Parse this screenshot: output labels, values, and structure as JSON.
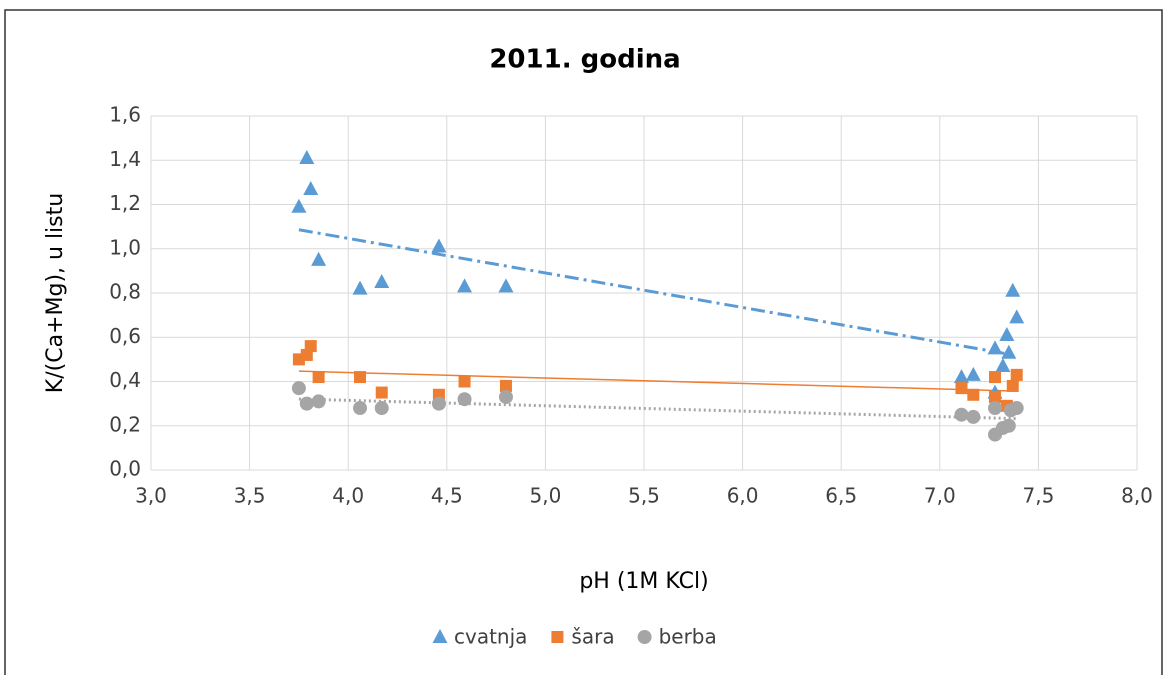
{
  "chart_data": {
    "type": "scatter",
    "title": "2011. godina",
    "x_label": "pH (1M KCl)",
    "y_label": "K/(Ca+Mg),  u listu",
    "xlim": [
      3.0,
      8.0
    ],
    "xticks": [
      {
        "value": 3.0,
        "label": "3,0"
      },
      {
        "value": 3.5,
        "label": "3,5"
      },
      {
        "value": 4.0,
        "label": "4,0"
      },
      {
        "value": 4.5,
        "label": "4,5"
      },
      {
        "value": 5.0,
        "label": "5,0"
      },
      {
        "value": 5.5,
        "label": "5,5"
      },
      {
        "value": 6.0,
        "label": "6,0"
      },
      {
        "value": 6.5,
        "label": "6,5"
      },
      {
        "value": 7.0,
        "label": "7,0"
      },
      {
        "value": 7.5,
        "label": "7,5"
      },
      {
        "value": 8.0,
        "label": "8,0"
      }
    ],
    "ylim": [
      0.0,
      1.6
    ],
    "yticks": [
      {
        "value": 0.0,
        "label": "0,0"
      },
      {
        "value": 0.2,
        "label": "0,2"
      },
      {
        "value": 0.4,
        "label": "0,4"
      },
      {
        "value": 0.6,
        "label": "0,6"
      },
      {
        "value": 0.8,
        "label": "0,8"
      },
      {
        "value": 1.0,
        "label": "1,0"
      },
      {
        "value": 1.2,
        "label": "1,2"
      },
      {
        "value": 1.4,
        "label": "1,4"
      },
      {
        "value": 1.6,
        "label": "1,6"
      }
    ],
    "grid": true,
    "legend": "bottom",
    "series": [
      {
        "name": "cvatnja",
        "color": "#5b9bd5",
        "marker": "triangle",
        "trendline": "dashdot",
        "x": [
          3.75,
          3.79,
          3.81,
          3.85,
          4.06,
          4.17,
          4.46,
          4.59,
          4.8,
          7.11,
          7.17,
          7.28,
          7.28,
          7.32,
          7.34,
          7.35,
          7.37,
          7.39
        ],
        "values": [
          1.19,
          1.41,
          1.27,
          0.95,
          0.82,
          0.85,
          1.01,
          0.83,
          0.83,
          0.42,
          0.43,
          0.55,
          0.35,
          0.47,
          0.61,
          0.53,
          0.81,
          0.69
        ]
      },
      {
        "name": "šara",
        "color": "#ed7d31",
        "marker": "square",
        "trendline": "solid",
        "x": [
          3.75,
          3.79,
          3.81,
          3.85,
          4.06,
          4.17,
          4.46,
          4.59,
          4.8,
          7.11,
          7.17,
          7.28,
          7.28,
          7.34,
          7.37,
          7.39
        ],
        "values": [
          0.5,
          0.52,
          0.56,
          0.42,
          0.42,
          0.35,
          0.34,
          0.4,
          0.38,
          0.37,
          0.34,
          0.42,
          0.33,
          0.29,
          0.38,
          0.43
        ]
      },
      {
        "name": "berba",
        "color": "#a5a5a5",
        "marker": "circle",
        "trendline": "dotted",
        "x": [
          3.75,
          3.79,
          3.85,
          4.06,
          4.17,
          4.46,
          4.59,
          4.8,
          7.11,
          7.17,
          7.28,
          7.28,
          7.32,
          7.35,
          7.36,
          7.39
        ],
        "values": [
          0.37,
          0.3,
          0.31,
          0.28,
          0.28,
          0.3,
          0.32,
          0.33,
          0.25,
          0.24,
          0.28,
          0.16,
          0.19,
          0.2,
          0.27,
          0.28
        ]
      }
    ]
  }
}
